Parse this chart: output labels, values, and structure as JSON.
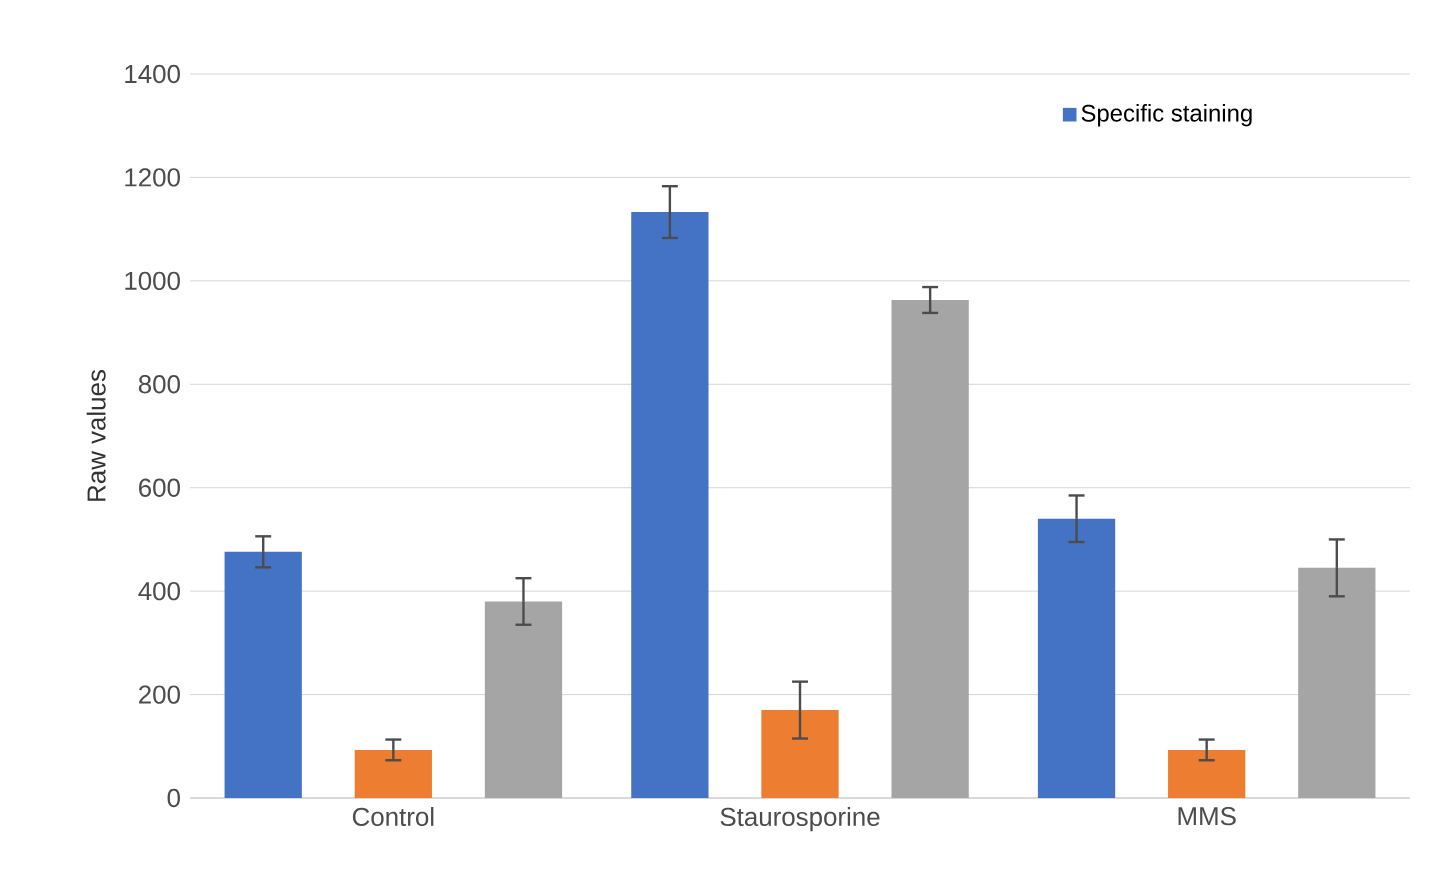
{
  "chart_data": {
    "type": "bar",
    "ylabel": "Raw values",
    "categories": [
      "Control",
      "Staurosporine",
      "MMS"
    ],
    "series": [
      {
        "name": "Specific staining",
        "color": "#4472c4",
        "values": [
          476,
          1133,
          540
        ],
        "errors": [
          30,
          50,
          45
        ]
      },
      {
        "color": "#ed7d31",
        "values": [
          93,
          170,
          93
        ],
        "errors": [
          20,
          55,
          20
        ]
      },
      {
        "color": "#a5a5a5",
        "values": [
          380,
          963,
          445
        ],
        "errors": [
          45,
          25,
          55
        ]
      }
    ],
    "ylim": [
      0,
      1400
    ],
    "yticks": [
      0,
      200,
      400,
      600,
      800,
      1000,
      1200,
      1400
    ],
    "grid": "y",
    "legend": "top right"
  }
}
